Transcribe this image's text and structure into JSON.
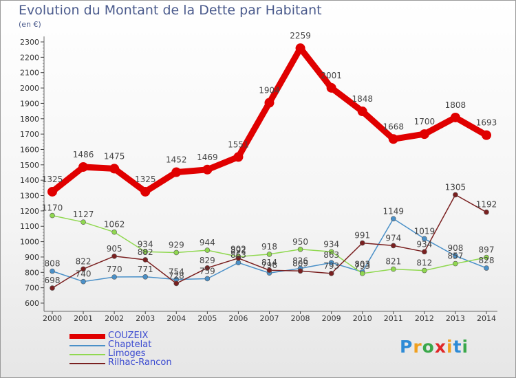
{
  "title": "Evolution du Montant de la Dette par Habitant",
  "subtitle": "(en €)",
  "logo": {
    "text": "Proxiti",
    "colors": [
      "#2e8bd6",
      "#f0a020",
      "#3aa84a",
      "#e02828",
      "#f0a020",
      "#2e8bd6",
      "#3aa84a"
    ]
  },
  "chart_data": {
    "type": "line",
    "x": [
      2000,
      2001,
      2002,
      2003,
      2004,
      2005,
      2006,
      2007,
      2008,
      2009,
      2010,
      2011,
      2012,
      2013,
      2014
    ],
    "xlabels": [
      "2000",
      "2001",
      "2002",
      "2003",
      "2004",
      "2005",
      "2006",
      "2007",
      "2008",
      "2009",
      "2010",
      "2011",
      "2012",
      "2013",
      "2014"
    ],
    "ylim": [
      600,
      2300
    ],
    "yticks": [
      600,
      700,
      800,
      900,
      1000,
      1100,
      1200,
      1300,
      1400,
      1500,
      1600,
      1700,
      1800,
      1900,
      2000,
      2100,
      2200,
      2300
    ],
    "grid": false,
    "legend_position": "bottom-left",
    "series": [
      {
        "name": "COUZEIX",
        "color": "#e00000",
        "values": [
          1325,
          1486,
          1475,
          1325,
          1452,
          1469,
          1551,
          1904,
          2259,
          2001,
          1848,
          1668,
          1700,
          1808,
          1693
        ],
        "labels": [
          "1325",
          "1486",
          "1475",
          "1325",
          "1452",
          "1469",
          "1551",
          "1904",
          "2259",
          "2001",
          "1848",
          "1668",
          "1700",
          "1808",
          "1693"
        ]
      },
      {
        "name": "Chaptelat",
        "color": "#4a90c8",
        "values": [
          808,
          740,
          770,
          771,
          754,
          759,
          863,
          796,
          826,
          863,
          803,
          1149,
          1019,
          908,
          828
        ],
        "labels": [
          "808",
          "740",
          "770",
          "771",
          "754",
          "759",
          "863",
          "796",
          "826",
          "863",
          "803",
          "1149",
          "1019",
          "908",
          "828"
        ]
      },
      {
        "name": "Limoges",
        "color": "#90d850",
        "values": [
          1170,
          1127,
          1062,
          934,
          929,
          944,
          902,
          918,
          950,
          934,
          793,
          821,
          812,
          857,
          897
        ],
        "labels": [
          "1170",
          "1127",
          "1062",
          "934",
          "929",
          "944",
          "902",
          "918",
          "950",
          "934",
          "793",
          "821",
          "812",
          "857",
          "897"
        ]
      },
      {
        "name": "Rilhac-Rancon",
        "color": "#7a2020",
        "values": [
          698,
          822,
          905,
          882,
          728,
          829,
          892,
          814,
          809,
          793,
          991,
          974,
          934,
          1305,
          1192
        ],
        "labels": [
          "698",
          "822",
          "905",
          "882",
          "728",
          "829",
          "892",
          "814",
          "809",
          "793",
          "991",
          "974",
          "934",
          "1305",
          "1192"
        ]
      }
    ]
  }
}
